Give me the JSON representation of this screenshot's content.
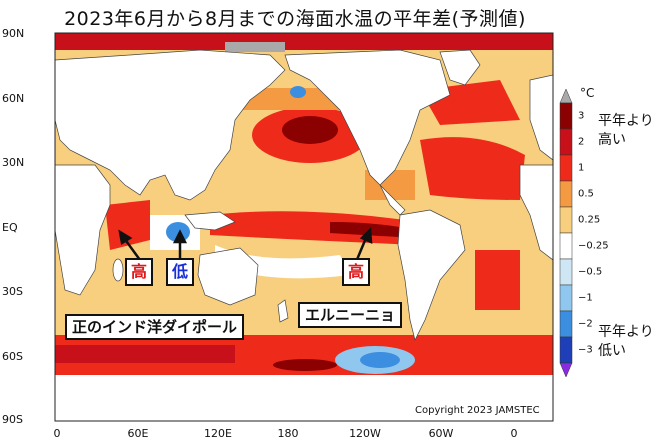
{
  "title": "2023年6月から8月までの海面水温の平年差(予測値)",
  "axes": {
    "lat_labels": [
      "90N",
      "60N",
      "30N",
      "EQ",
      "30S",
      "60S",
      "90S"
    ],
    "lon_labels": [
      "0",
      "60E",
      "120E",
      "180",
      "120W",
      "60W",
      "0"
    ]
  },
  "colorbar": {
    "unit": "°C",
    "tick_labels": [
      "3",
      "2",
      "1",
      "0.5",
      "0.25",
      "−0.25",
      "−0.5",
      "−1",
      "−2",
      "−3"
    ],
    "colors": [
      "#8b0000",
      "#c8101a",
      "#ee2a1a",
      "#f39a42",
      "#f7cf7e",
      "#ffffff",
      "#cfe7f5",
      "#8fc7ee",
      "#3b8ee0",
      "#1f3fb8"
    ],
    "over_color": "#a9a9a9",
    "under_color": "#8a2be2",
    "high_label_line1": "平年より",
    "high_label_line2": "高い",
    "low_label_line1": "平年より",
    "low_label_line2": "低い"
  },
  "annotations": {
    "high_west_indian": "高",
    "low_east_indian": "低",
    "high_east_pacific": "高",
    "iod_label": "正のインド洋ダイポール",
    "el_nino_label": "エルニーニョ"
  },
  "colors": {
    "land": "#ffffff",
    "warm_strong": "#c8101a",
    "warm": "#ee2a1a",
    "warm_light": "#f39a42",
    "warm_faint": "#f7cf7e",
    "cool": "#8fc7ee",
    "cool_strong": "#3b8ee0"
  },
  "copyright": "Copyright 2023 JAMSTEC"
}
